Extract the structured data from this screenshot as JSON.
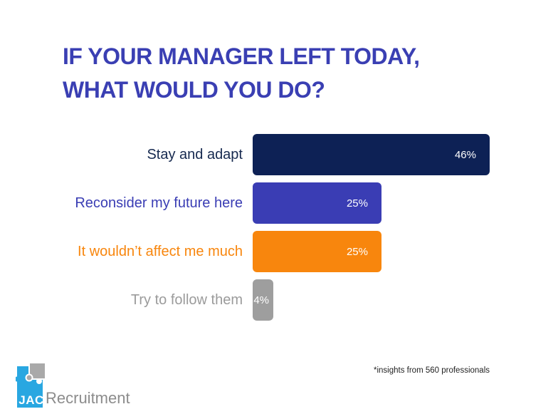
{
  "title": {
    "line1": "IF YOUR MANAGER LEFT TODAY,",
    "line2": "WHAT WOULD YOU DO?"
  },
  "chart_data": {
    "type": "bar",
    "orientation": "horizontal",
    "title": "IF YOUR MANAGER LEFT TODAY, WHAT WOULD YOU DO?",
    "categories": [
      "Stay and adapt",
      "Reconsider my future here",
      "It wouldn’t affect me much",
      "Try to follow them"
    ],
    "values": [
      46,
      25,
      25,
      4
    ],
    "value_labels": [
      "46%",
      "25%",
      "25%",
      "4%"
    ],
    "bar_colors": [
      "#0d2155",
      "#3a3db4",
      "#f8860d",
      "#9e9e9e"
    ],
    "label_colors": [
      "#16294f",
      "#3a3db4",
      "#f8860d",
      "#9b9b9b"
    ],
    "value_label_color": "#ffffff",
    "xlim": [
      0,
      46
    ],
    "grid": false,
    "legend": "none"
  },
  "footnote": "*insights from 560 professionals",
  "logo": {
    "square_text": "JAC",
    "wordmark": "Recruitment",
    "square_color": "#29a7e1",
    "puzzle_color": "#a9a9a9",
    "wordmark_color": "#8c8c8c"
  }
}
